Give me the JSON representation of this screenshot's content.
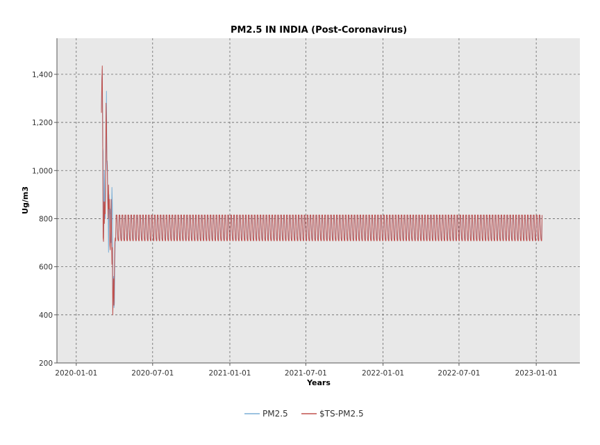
{
  "chart_data": {
    "type": "line",
    "title": "PM2.5 IN INDIA (Post-Coronavirus)",
    "xlabel": "Years",
    "ylabel": "Ug/m3",
    "x_ticks": [
      "2020-01-01",
      "2020-07-01",
      "2021-01-01",
      "2021-07-01",
      "2022-01-01",
      "2022-07-01",
      "2023-01-01"
    ],
    "y_ticks": [
      "200",
      "400",
      "600",
      "800",
      "1,000",
      "1,200",
      "1,400"
    ],
    "xlim": [
      "2019-11-16",
      "2023-04-15"
    ],
    "ylim": [
      200,
      1550
    ],
    "grid": true,
    "legend_position": "bottom-center",
    "background_color": "#e8e8e8",
    "series": [
      {
        "name": "PM2.5",
        "color": "#7aaed6",
        "initial": [
          [
            "2020-03-01",
            1250
          ],
          [
            "2020-03-02",
            1380
          ],
          [
            "2020-03-03",
            1420
          ],
          [
            "2020-03-04",
            1100
          ],
          [
            "2020-03-05",
            1080
          ],
          [
            "2020-03-06",
            720
          ],
          [
            "2020-03-07",
            790
          ],
          [
            "2020-03-08",
            1000
          ],
          [
            "2020-03-09",
            880
          ],
          [
            "2020-03-10",
            800
          ],
          [
            "2020-03-11",
            1000
          ],
          [
            "2020-03-12",
            1100
          ],
          [
            "2020-03-13",
            1330
          ],
          [
            "2020-03-14",
            1000
          ],
          [
            "2020-03-15",
            1040
          ],
          [
            "2020-03-16",
            900
          ],
          [
            "2020-03-17",
            830
          ],
          [
            "2020-03-18",
            660
          ],
          [
            "2020-03-19",
            900
          ],
          [
            "2020-03-20",
            860
          ],
          [
            "2020-03-21",
            820
          ],
          [
            "2020-03-22",
            840
          ],
          [
            "2020-03-23",
            770
          ],
          [
            "2020-03-24",
            700
          ],
          [
            "2020-03-25",
            780
          ],
          [
            "2020-03-26",
            930
          ],
          [
            "2020-03-27",
            860
          ],
          [
            "2020-03-28",
            560
          ],
          [
            "2020-03-29",
            440
          ],
          [
            "2020-03-30",
            560
          ],
          [
            "2020-03-31",
            430
          ],
          [
            "2020-04-01",
            450
          ],
          [
            "2020-04-02",
            620
          ],
          [
            "2020-04-03",
            720
          ]
        ],
        "periodic_start": "2020-04-04",
        "periodic_end": "2023-01-15",
        "period_days": 7,
        "high": 812,
        "low": 710
      },
      {
        "name": "$TS-PM2.5",
        "color": "#c0504d",
        "initial": [
          [
            "2020-03-01",
            1240
          ],
          [
            "2020-03-02",
            1370
          ],
          [
            "2020-03-03",
            1435
          ],
          [
            "2020-03-04",
            1180
          ],
          [
            "2020-03-05",
            720
          ],
          [
            "2020-03-06",
            705
          ],
          [
            "2020-03-07",
            870
          ],
          [
            "2020-03-08",
            780
          ],
          [
            "2020-03-09",
            870
          ],
          [
            "2020-03-10",
            820
          ],
          [
            "2020-03-11",
            1030
          ],
          [
            "2020-03-12",
            1280
          ],
          [
            "2020-03-13",
            1200
          ],
          [
            "2020-03-14",
            1040
          ],
          [
            "2020-03-15",
            1020
          ],
          [
            "2020-03-16",
            880
          ],
          [
            "2020-03-17",
            800
          ],
          [
            "2020-03-18",
            940
          ],
          [
            "2020-03-19",
            840
          ],
          [
            "2020-03-20",
            880
          ],
          [
            "2020-03-21",
            690
          ],
          [
            "2020-03-22",
            670
          ],
          [
            "2020-03-23",
            750
          ],
          [
            "2020-03-24",
            880
          ],
          [
            "2020-03-25",
            740
          ],
          [
            "2020-03-26",
            610
          ],
          [
            "2020-03-27",
            680
          ],
          [
            "2020-03-28",
            400
          ],
          [
            "2020-03-29",
            470
          ],
          [
            "2020-03-30",
            550
          ],
          [
            "2020-03-31",
            440
          ],
          [
            "2020-04-01",
            590
          ],
          [
            "2020-04-02",
            700
          ],
          [
            "2020-04-03",
            720
          ]
        ],
        "periodic_start": "2020-04-04",
        "periodic_end": "2023-01-15",
        "period_days": 7,
        "high": 815,
        "low": 708
      }
    ]
  }
}
